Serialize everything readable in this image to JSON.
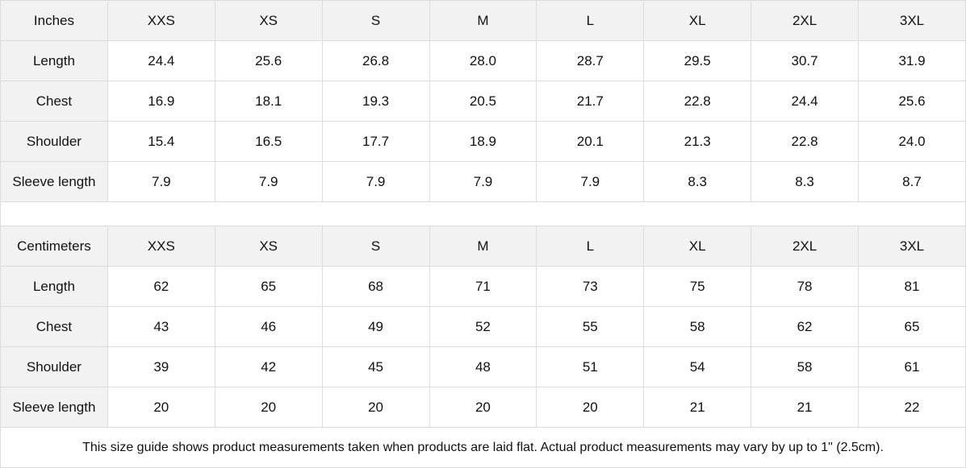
{
  "sizes": [
    "XXS",
    "XS",
    "S",
    "M",
    "L",
    "XL",
    "2XL",
    "3XL"
  ],
  "tables": [
    {
      "unit_label": "Inches",
      "rows": [
        {
          "label": "Length",
          "values": [
            "24.4",
            "25.6",
            "26.8",
            "28.0",
            "28.7",
            "29.5",
            "30.7",
            "31.9"
          ]
        },
        {
          "label": "Chest",
          "values": [
            "16.9",
            "18.1",
            "19.3",
            "20.5",
            "21.7",
            "22.8",
            "24.4",
            "25.6"
          ]
        },
        {
          "label": "Shoulder",
          "values": [
            "15.4",
            "16.5",
            "17.7",
            "18.9",
            "20.1",
            "21.3",
            "22.8",
            "24.0"
          ]
        },
        {
          "label": "Sleeve length",
          "values": [
            "7.9",
            "7.9",
            "7.9",
            "7.9",
            "7.9",
            "8.3",
            "8.3",
            "8.7"
          ]
        }
      ]
    },
    {
      "unit_label": "Centimeters",
      "rows": [
        {
          "label": "Length",
          "values": [
            "62",
            "65",
            "68",
            "71",
            "73",
            "75",
            "78",
            "81"
          ]
        },
        {
          "label": "Chest",
          "values": [
            "43",
            "46",
            "49",
            "52",
            "55",
            "58",
            "62",
            "65"
          ]
        },
        {
          "label": "Shoulder",
          "values": [
            "39",
            "42",
            "45",
            "48",
            "51",
            "54",
            "58",
            "61"
          ]
        },
        {
          "label": "Sleeve length",
          "values": [
            "20",
            "20",
            "20",
            "20",
            "20",
            "21",
            "21",
            "22"
          ]
        }
      ]
    }
  ],
  "footnote": "This size guide shows product measurements taken when products are laid flat.  Actual product measurements may vary by up to 1\" (2.5cm).",
  "colors": {
    "header_bg": "#f2f2f2",
    "border": "#dcdcdc"
  }
}
